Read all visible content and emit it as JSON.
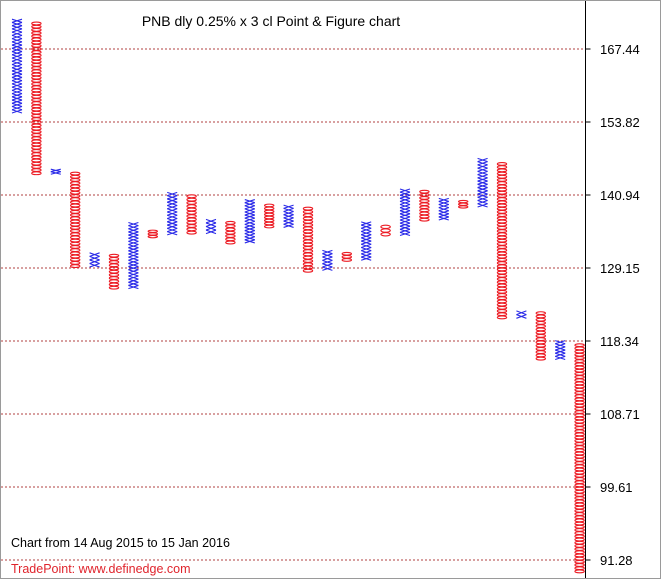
{
  "chart_data": {
    "type": "point-and-figure",
    "title": "PNB dly 0.25% x 3 cl Point & Figure chart",
    "range_note": "Chart from 14 Aug 2015 to 15 Jan 2016",
    "brand": "TradePoint: www.definedge.com",
    "y_ticks": [
      "167.44",
      "153.82",
      "140.94",
      "129.15",
      "118.34",
      "108.71",
      "99.61",
      "91.28"
    ],
    "y_tick_values": [
      167.44,
      153.82,
      140.94,
      129.15,
      118.34,
      108.71,
      99.61,
      91.28
    ],
    "gridlines": "horizontal dotted",
    "colors": {
      "x_column": "#2a2ae8",
      "o_column": "#ec1c24",
      "grid": "#b04040",
      "brand": "#e0242c"
    },
    "columns": [
      {
        "kind": "X",
        "low": 155.5,
        "high": 173.0
      },
      {
        "kind": "O",
        "low": 144.5,
        "high": 172.5
      },
      {
        "kind": "X",
        "low": 144.6,
        "high": 145.5
      },
      {
        "kind": "O",
        "low": 129.2,
        "high": 145.0
      },
      {
        "kind": "X",
        "low": 129.3,
        "high": 131.6
      },
      {
        "kind": "O",
        "low": 126.0,
        "high": 131.4
      },
      {
        "kind": "X",
        "low": 126.1,
        "high": 136.5
      },
      {
        "kind": "O",
        "low": 134.0,
        "high": 135.3
      },
      {
        "kind": "X",
        "low": 134.5,
        "high": 141.4
      },
      {
        "kind": "O",
        "low": 134.6,
        "high": 141.0
      },
      {
        "kind": "X",
        "low": 134.7,
        "high": 137.0
      },
      {
        "kind": "O",
        "low": 133.0,
        "high": 136.7
      },
      {
        "kind": "X",
        "low": 133.2,
        "high": 140.2
      },
      {
        "kind": "O",
        "low": 135.6,
        "high": 139.5
      },
      {
        "kind": "X",
        "low": 135.7,
        "high": 139.3
      },
      {
        "kind": "O",
        "low": 128.5,
        "high": 139.0
      },
      {
        "kind": "X",
        "low": 128.8,
        "high": 132.0
      },
      {
        "kind": "O",
        "low": 130.2,
        "high": 131.7
      },
      {
        "kind": "X",
        "low": 130.4,
        "high": 136.6
      },
      {
        "kind": "O",
        "low": 134.3,
        "high": 136.1
      },
      {
        "kind": "X",
        "low": 134.4,
        "high": 142.0
      },
      {
        "kind": "O",
        "low": 136.7,
        "high": 141.8
      },
      {
        "kind": "X",
        "low": 136.9,
        "high": 140.4
      },
      {
        "kind": "O",
        "low": 138.8,
        "high": 140.1
      },
      {
        "kind": "X",
        "low": 139.0,
        "high": 147.4
      },
      {
        "kind": "O",
        "low": 121.6,
        "high": 146.7
      },
      {
        "kind": "X",
        "low": 121.7,
        "high": 122.8
      },
      {
        "kind": "O",
        "low": 115.8,
        "high": 122.7
      },
      {
        "kind": "X",
        "low": 115.9,
        "high": 118.4
      },
      {
        "kind": "O",
        "low": 89.8,
        "high": 118.0
      }
    ]
  }
}
